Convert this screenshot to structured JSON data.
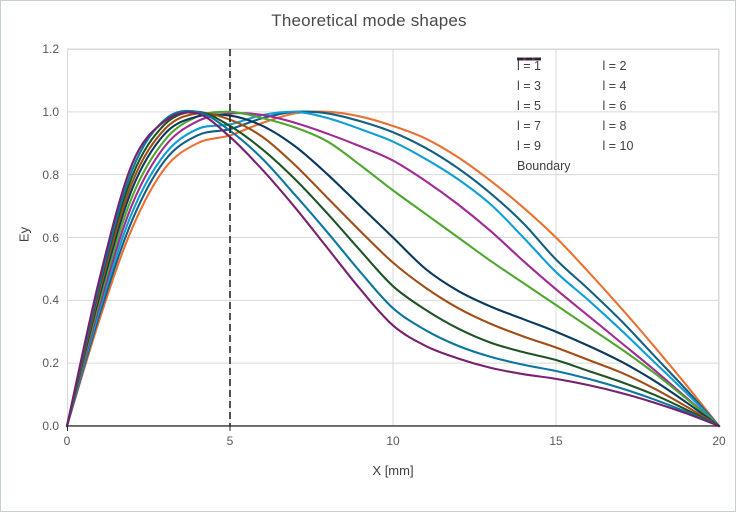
{
  "chart_data": {
    "type": "line",
    "title": "Theoretical mode shapes",
    "xlabel": "X [mm]",
    "ylabel": "Ey",
    "xlim": [
      0,
      20
    ],
    "ylim": [
      0,
      1.2
    ],
    "x_ticks": [
      "0",
      "5",
      "10",
      "15",
      "20"
    ],
    "y_ticks": [
      "1.2",
      "1.0",
      "0.8",
      "0.6",
      "0.4",
      "0.2",
      "0.0"
    ],
    "grid": true,
    "legend_position": "top-right",
    "grid_color": "#d9d9d9",
    "axis_color": "#262626",
    "x": [
      0,
      1,
      2,
      3,
      4,
      5,
      6,
      7,
      8,
      9,
      10,
      11,
      12,
      13,
      14,
      15,
      16,
      17,
      18,
      19,
      20
    ],
    "series": [
      {
        "name": "l = 1",
        "color": "#E97132",
        "values": [
          0,
          0.34,
          0.63,
          0.82,
          0.9,
          0.925,
          0.965,
          0.995,
          1.0,
          0.985,
          0.955,
          0.915,
          0.855,
          0.78,
          0.695,
          0.6,
          0.49,
          0.375,
          0.255,
          0.13,
          0
        ]
      },
      {
        "name": "l = 2",
        "color": "#156082",
        "values": [
          0,
          0.355,
          0.655,
          0.845,
          0.925,
          0.945,
          0.98,
          1.0,
          0.995,
          0.97,
          0.935,
          0.885,
          0.82,
          0.74,
          0.645,
          0.53,
          0.435,
          0.335,
          0.225,
          0.115,
          0
        ]
      },
      {
        "name": "l = 3",
        "color": "#0F9ED5",
        "values": [
          0,
          0.37,
          0.68,
          0.865,
          0.945,
          0.96,
          0.99,
          1.0,
          0.98,
          0.945,
          0.905,
          0.85,
          0.785,
          0.705,
          0.6,
          0.49,
          0.4,
          0.305,
          0.205,
          0.105,
          0
        ]
      },
      {
        "name": "l = 4",
        "color": "#A02B93",
        "values": [
          0,
          0.385,
          0.705,
          0.89,
          0.97,
          0.995,
          0.99,
          0.965,
          0.93,
          0.89,
          0.845,
          0.78,
          0.705,
          0.62,
          0.525,
          0.435,
          0.35,
          0.265,
          0.18,
          0.09,
          0
        ]
      },
      {
        "name": "l = 5",
        "color": "#4EA72E",
        "values": [
          0,
          0.4,
          0.73,
          0.91,
          0.985,
          1.0,
          0.98,
          0.95,
          0.905,
          0.83,
          0.75,
          0.675,
          0.6,
          0.525,
          0.455,
          0.385,
          0.315,
          0.245,
          0.17,
          0.087,
          0
        ]
      },
      {
        "name": "l = 6",
        "color": "#0B3A5D",
        "values": [
          0,
          0.415,
          0.755,
          0.93,
          0.985,
          0.988,
          0.955,
          0.89,
          0.8,
          0.7,
          0.6,
          0.5,
          0.43,
          0.38,
          0.34,
          0.3,
          0.255,
          0.205,
          0.145,
          0.075,
          0
        ]
      },
      {
        "name": "l = 7",
        "color": "#A14E16",
        "values": [
          0,
          0.43,
          0.775,
          0.945,
          0.995,
          0.975,
          0.92,
          0.83,
          0.725,
          0.62,
          0.52,
          0.44,
          0.375,
          0.325,
          0.285,
          0.25,
          0.21,
          0.17,
          0.12,
          0.062,
          0
        ]
      },
      {
        "name": "l = 8",
        "color": "#1E5425",
        "values": [
          0,
          0.445,
          0.795,
          0.96,
          1.0,
          0.955,
          0.88,
          0.785,
          0.675,
          0.558,
          0.445,
          0.37,
          0.31,
          0.265,
          0.235,
          0.21,
          0.175,
          0.14,
          0.1,
          0.052,
          0
        ]
      },
      {
        "name": "l = 9",
        "color": "#0B76A0",
        "values": [
          0,
          0.455,
          0.815,
          0.975,
          1.0,
          0.94,
          0.85,
          0.735,
          0.615,
          0.49,
          0.375,
          0.305,
          0.255,
          0.22,
          0.195,
          0.175,
          0.15,
          0.12,
          0.085,
          0.045,
          0
        ]
      },
      {
        "name": "l = 10",
        "color": "#78206E",
        "values": [
          0,
          0.47,
          0.835,
          0.97,
          0.995,
          0.92,
          0.815,
          0.695,
          0.565,
          0.435,
          0.32,
          0.255,
          0.215,
          0.185,
          0.165,
          0.15,
          0.13,
          0.105,
          0.075,
          0.04,
          0
        ]
      }
    ],
    "boundary": {
      "label": "Boundary",
      "x": 5,
      "color": "#262626",
      "style": "dashed"
    }
  }
}
